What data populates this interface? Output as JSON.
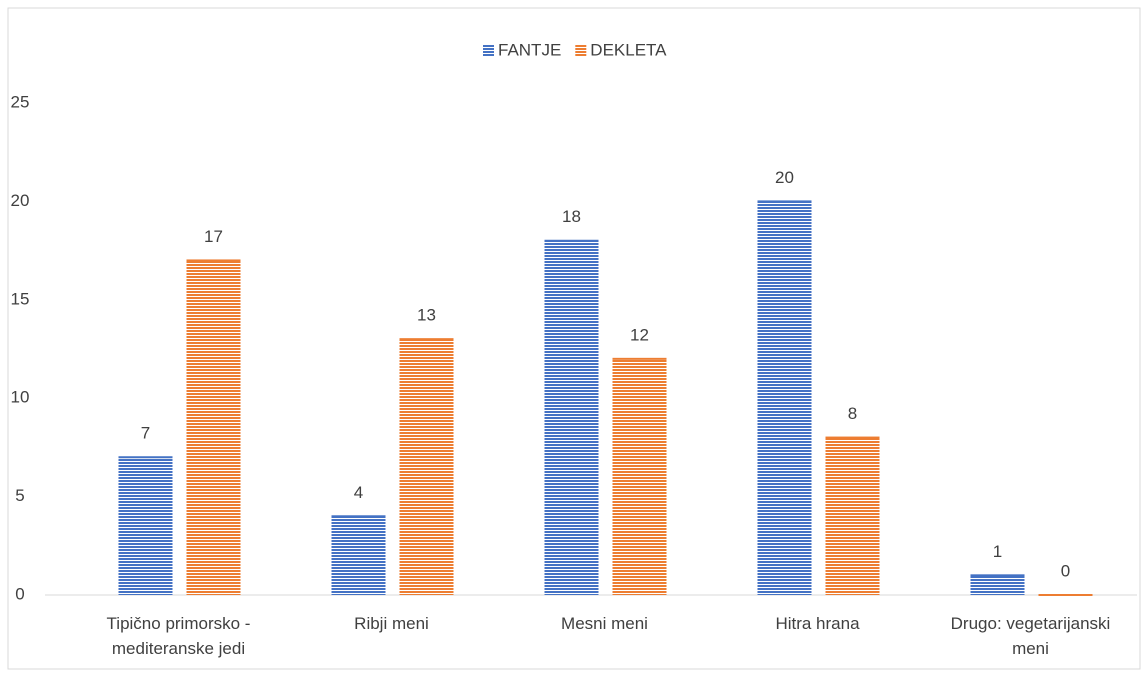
{
  "chart_data": {
    "type": "bar",
    "categories": [
      "Tipično primorsko - mediteranske jedi",
      "Ribji meni",
      "Mesni meni",
      "Hitra hrana",
      "Drugo: vegetarijanski meni"
    ],
    "series": [
      {
        "name": "FANTJE",
        "color": "#4472c4",
        "values": [
          7,
          4,
          18,
          20,
          1
        ]
      },
      {
        "name": "DEKLETA",
        "color": "#ed7d31",
        "values": [
          17,
          13,
          12,
          8,
          0
        ]
      }
    ],
    "ylim": [
      0,
      25
    ],
    "yticks": [
      0,
      5,
      10,
      15,
      20,
      25
    ],
    "grid": false,
    "legend": "top"
  }
}
